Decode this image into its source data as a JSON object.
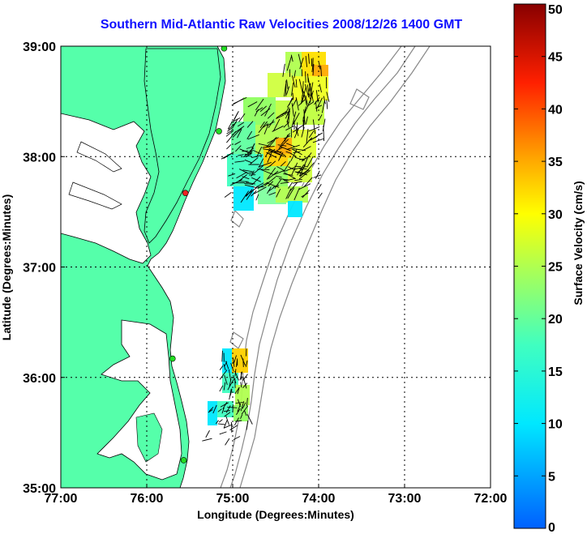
{
  "title": "Southern Mid-Atlantic Raw Velocities 2008/12/26 1400 GMT",
  "map": {
    "xlabel": "Longitude (Degrees:Minutes)",
    "ylabel": "Latitude (Degrees:Minutes)",
    "lon_range": [
      -77,
      -72
    ],
    "lat_range": [
      35,
      39
    ],
    "lon_ticks": [
      {
        "value": -77,
        "label": "77:00"
      },
      {
        "value": -76,
        "label": "76:00"
      },
      {
        "value": -75,
        "label": "75:00"
      },
      {
        "value": -74,
        "label": "74:00"
      },
      {
        "value": -73,
        "label": "73:00"
      },
      {
        "value": -72,
        "label": "72:00"
      }
    ],
    "lat_ticks": [
      {
        "value": 39,
        "label": "39:00"
      },
      {
        "value": 38,
        "label": "38:00"
      },
      {
        "value": 37,
        "label": "37:00"
      },
      {
        "value": 36,
        "label": "36:00"
      },
      {
        "value": 35,
        "label": "35:00"
      }
    ],
    "grid": true,
    "land_color": "#55ffaa",
    "sites": [
      {
        "lon": -75.1,
        "lat": 38.98,
        "color": "#22dd22"
      },
      {
        "lon": -75.16,
        "lat": 38.23,
        "color": "#22dd22"
      },
      {
        "lon": -75.55,
        "lat": 37.67,
        "color": "#ee2222"
      },
      {
        "lon": -75.7,
        "lat": 36.17,
        "color": "#22dd22"
      },
      {
        "lon": -75.57,
        "lat": 35.25,
        "color": "#22dd22"
      }
    ]
  },
  "colorbar": {
    "label": "Surface Velocity (cm/s)",
    "min": 0,
    "max": 50,
    "ticks": [
      {
        "value": 50,
        "label": "50"
      },
      {
        "value": 45,
        "label": "45"
      },
      {
        "value": 40,
        "label": "40"
      },
      {
        "value": 35,
        "label": "35"
      },
      {
        "value": 30,
        "label": "30"
      },
      {
        "value": 25,
        "label": "25"
      },
      {
        "value": 20,
        "label": "20"
      },
      {
        "value": 15,
        "label": "15"
      },
      {
        "value": 10,
        "label": "10"
      },
      {
        "value": 5,
        "label": "5"
      },
      {
        "value": 0,
        "label": "0"
      }
    ]
  }
}
